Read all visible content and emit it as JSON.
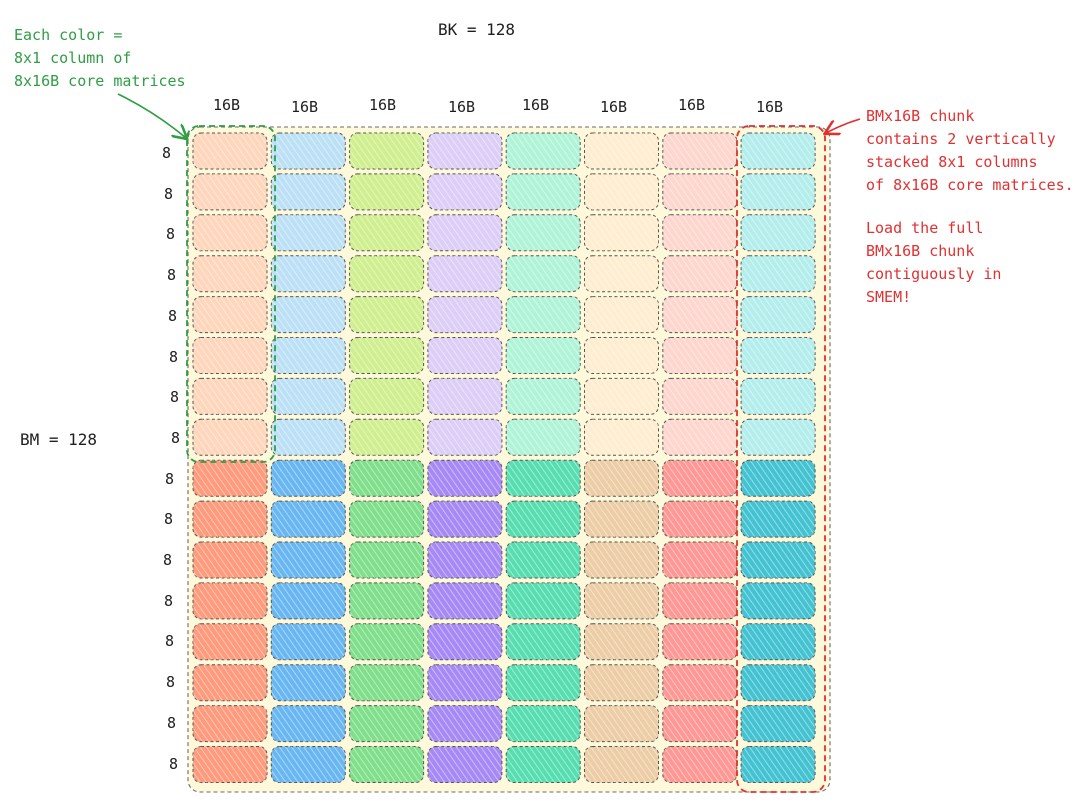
{
  "bk_label": "BK = 128",
  "bm_label": "BM = 128",
  "column_labels": [
    "16B",
    "16B",
    "16B",
    "16B",
    "16B",
    "16B",
    "16B",
    "16B"
  ],
  "row_labels": [
    "8",
    "8",
    "8",
    "8",
    "8",
    "8",
    "8",
    "8",
    "8",
    "8",
    "8",
    "8",
    "8",
    "8",
    "8",
    "8"
  ],
  "green_note": "Each color =\n8x1 column of\n8x16B core matrices",
  "red_note_1": "BMx16B chunk\ncontains 2 vertically\nstacked 8x1 columns\nof 8x16B core matrices.",
  "red_note_2": "Load the full\nBMx16B chunk\ncontiguously in\nSMEM!",
  "colors": {
    "green_annotation": "#2f9e44",
    "red_annotation": "#e03131",
    "background_fill": "#fff9db",
    "column_top": [
      "#ffc9b0",
      "#a5d8ff",
      "#c0eb75",
      "#d0bfff",
      "#96f2d7",
      "#ffe8cc",
      "#ffc9c9",
      "#99e9f2"
    ],
    "column_bottom": [
      "#ff8a6b",
      "#4dabf7",
      "#69db7c",
      "#9775fa",
      "#38d9a9",
      "#e9c69b",
      "#ff8787",
      "#22b8cf"
    ]
  }
}
